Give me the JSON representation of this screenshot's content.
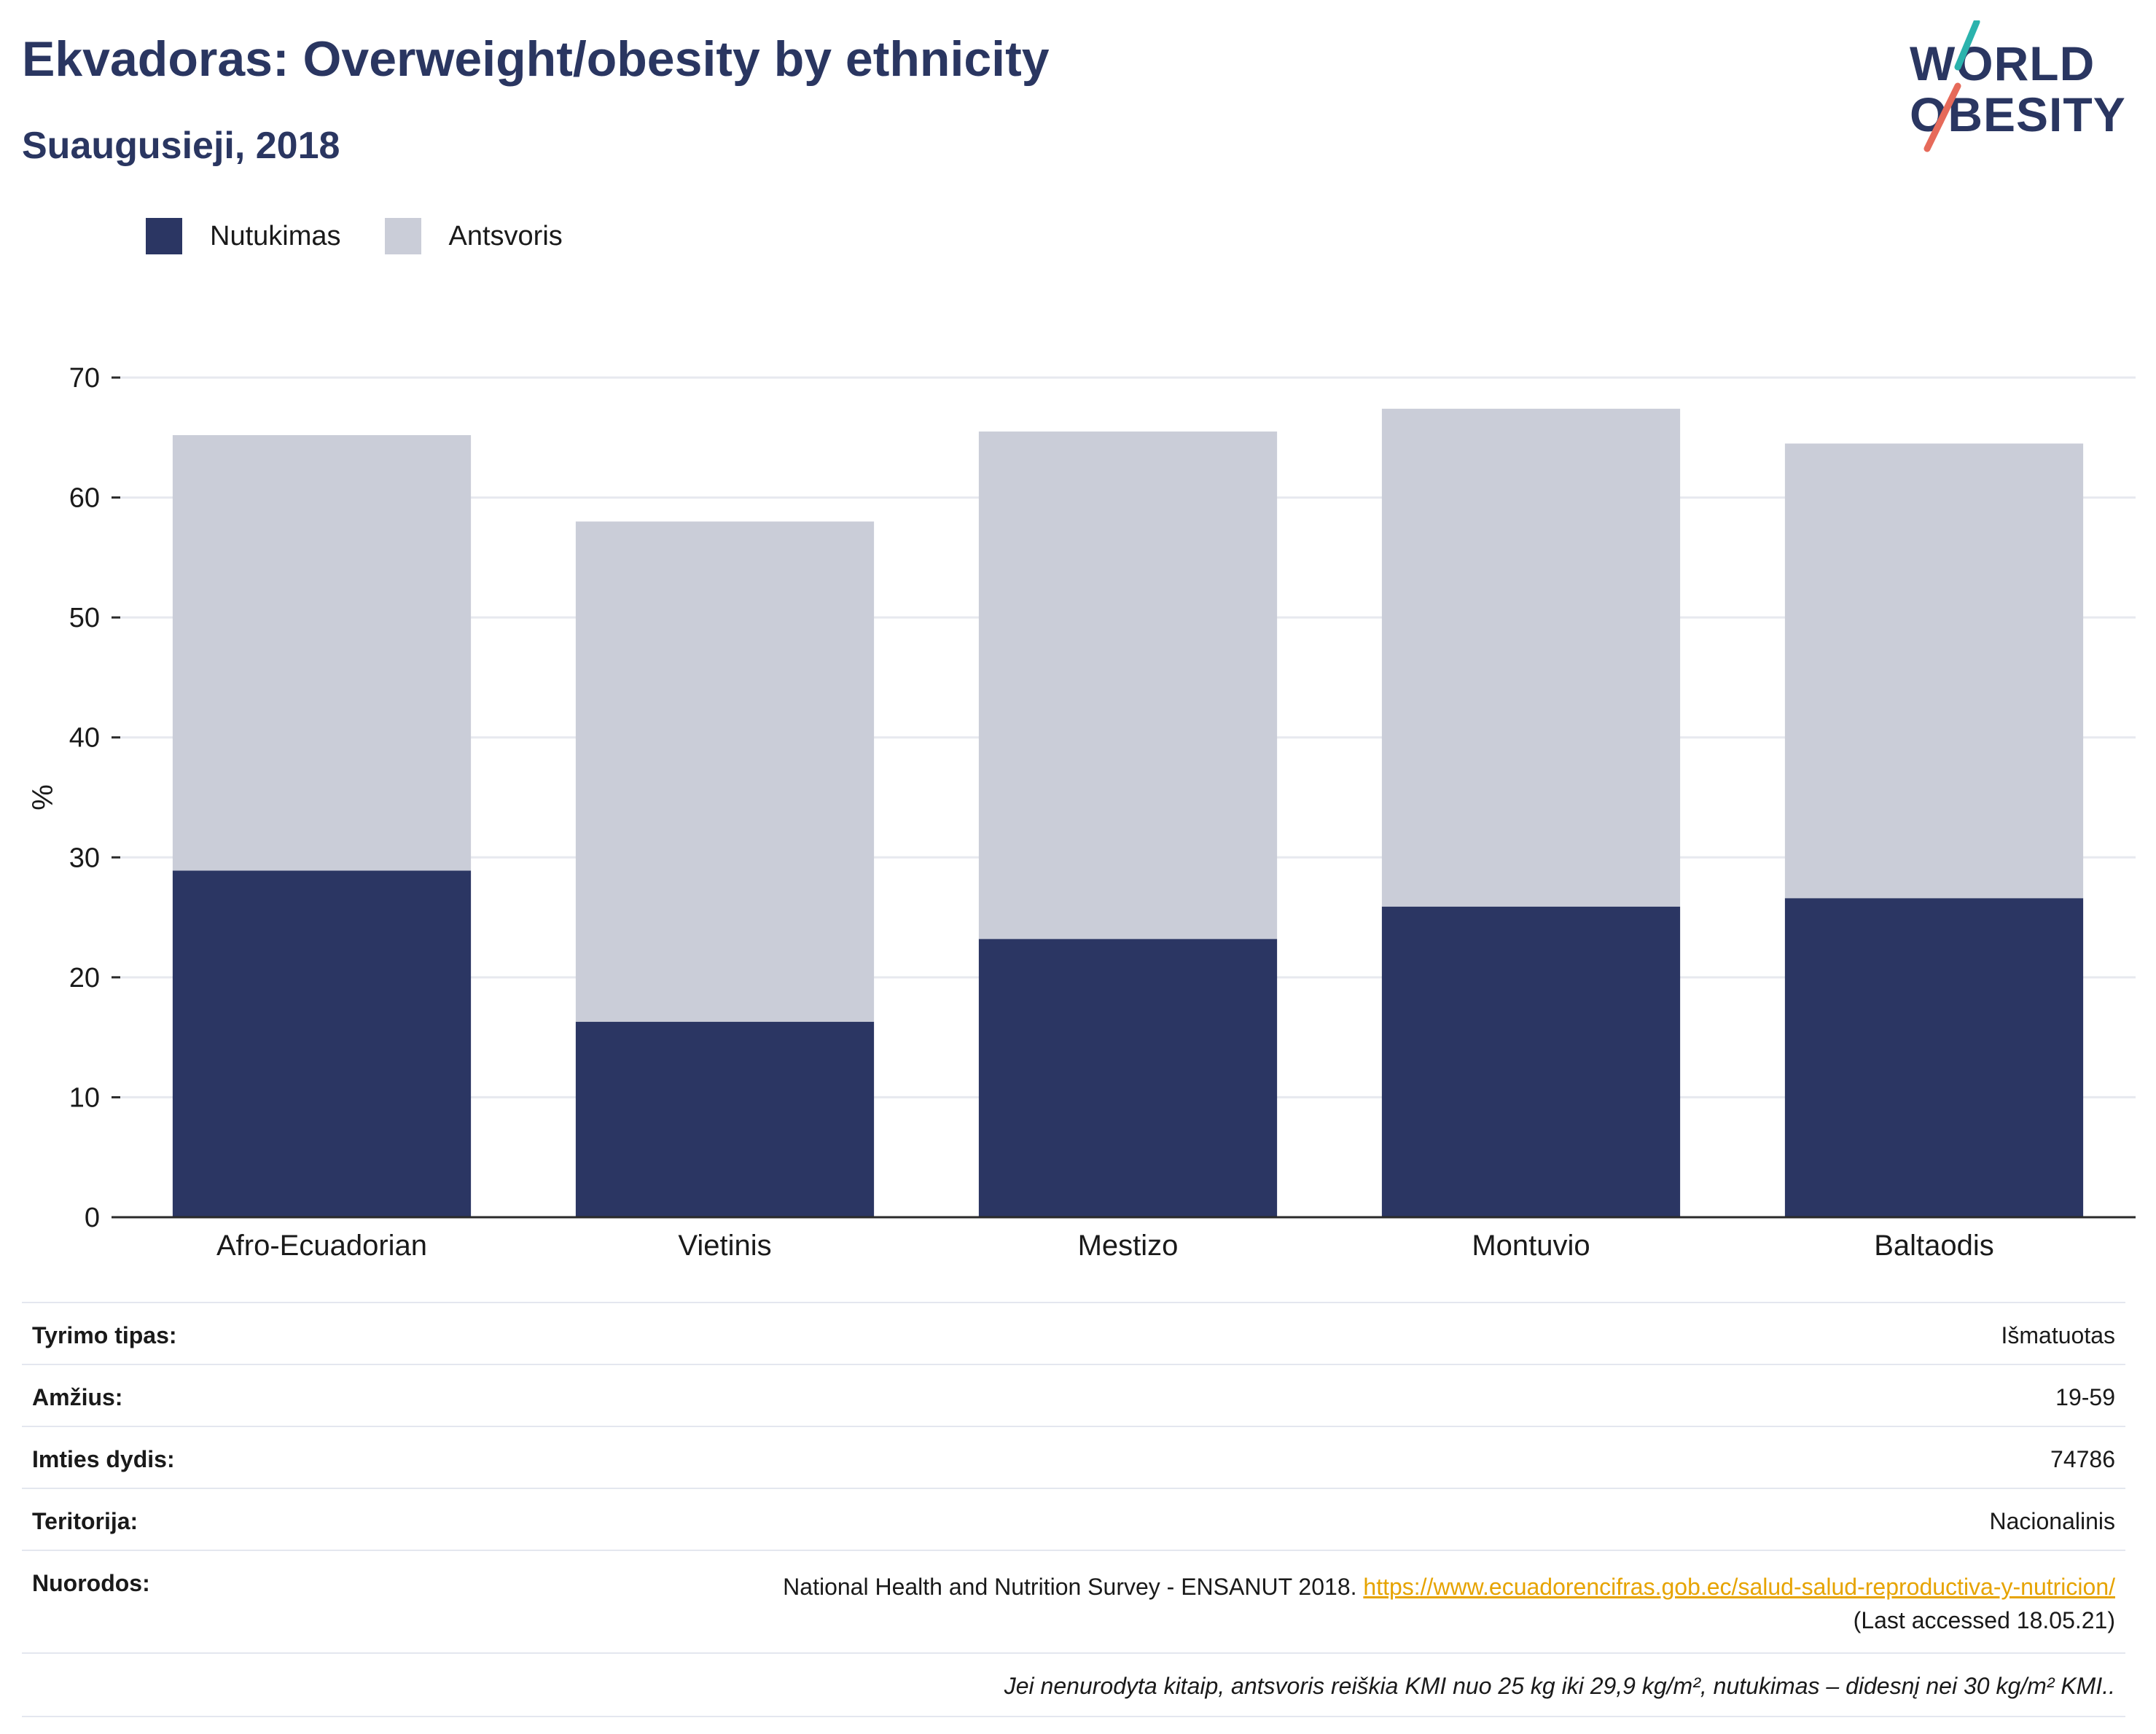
{
  "header": {
    "title": "Ekvadoras: Overweight/obesity by ethnicity",
    "subtitle": "Suaugusieji, 2018"
  },
  "logo": {
    "line1": "WORLD",
    "line2": "OBESITY"
  },
  "colors": {
    "obesity": "#2b3663",
    "overweight": "#cacdd8",
    "accent_teal": "#2bb3ad",
    "accent_coral": "#e66a5a",
    "link": "#e6a300"
  },
  "chart_data": {
    "type": "bar",
    "stacked": true,
    "categories": [
      "Afro-Ecuadorian",
      "Vietinis",
      "Mestizo",
      "Montuvio",
      "Baltaodis"
    ],
    "series": [
      {
        "name": "Nutukimas",
        "values": [
          28.9,
          16.3,
          23.2,
          25.9,
          26.6
        ]
      },
      {
        "name": "Antsvoris",
        "values": [
          36.3,
          41.7,
          42.3,
          41.5,
          37.9
        ]
      }
    ],
    "ylabel": "%",
    "ylim": [
      0,
      70
    ],
    "yticks": [
      0,
      10,
      20,
      30,
      40,
      50,
      60,
      70
    ],
    "grid": true,
    "legend_position": "top-left"
  },
  "info": {
    "rows": [
      {
        "label": "Tyrimo tipas:",
        "value": "Išmatuotas"
      },
      {
        "label": "Amžius:",
        "value": "19-59"
      },
      {
        "label": "Imties dydis:",
        "value": "74786"
      },
      {
        "label": "Teritorija:",
        "value": "Nacionalinis"
      }
    ],
    "references": {
      "label": "Nuorodos:",
      "text": "National Health and Nutrition Survey - ENSANUT 2018.",
      "link": "https://www.ecuadorencifras.gob.ec/salud-salud-reproductiva-y-nutricion/",
      "accessed": "(Last accessed 18.05.21)"
    },
    "note": "Jei nenurodyta kitaip, antsvoris reiškia KMI nuo 25 kg iki 29,9 kg/m², nutukimas – didesnį nei 30 kg/m² KMI.."
  }
}
